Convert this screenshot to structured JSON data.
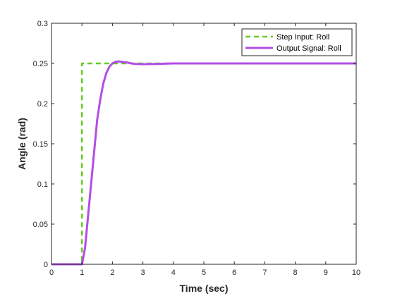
{
  "chart_data": {
    "type": "line",
    "title": "",
    "xlabel": "Time (sec)",
    "ylabel": "Angle (rad)",
    "xlim": [
      0,
      10
    ],
    "ylim": [
      0,
      0.3
    ],
    "xticks": [
      0,
      1,
      2,
      3,
      4,
      5,
      6,
      7,
      8,
      9,
      10
    ],
    "yticks": [
      0,
      0.05,
      0.1,
      0.15,
      0.2,
      0.25,
      0.3
    ],
    "xtick_labels": [
      "0",
      "1",
      "2",
      "3",
      "4",
      "5",
      "6",
      "7",
      "8",
      "9",
      "10"
    ],
    "ytick_labels": [
      "0",
      "0.05",
      "0.1",
      "0.15",
      "0.2",
      "0.25",
      "0.3"
    ],
    "grid": false,
    "legend_position": "top-right",
    "series": [
      {
        "name": "Step Input: Roll",
        "color": "#66cc22",
        "style": "dashed",
        "x": [
          0,
          1,
          1,
          10
        ],
        "y": [
          0,
          0,
          0.25,
          0.25
        ]
      },
      {
        "name": "Output Signal: Roll",
        "color": "#b34de6",
        "style": "solid",
        "x": [
          0,
          1.0,
          1.1,
          1.2,
          1.3,
          1.4,
          1.5,
          1.6,
          1.7,
          1.8,
          1.9,
          2.0,
          2.1,
          2.2,
          2.3,
          2.4,
          2.5,
          2.7,
          3.0,
          3.5,
          4.0,
          5.0,
          6.0,
          8.0,
          10.0
        ],
        "y": [
          0,
          0,
          0.02,
          0.06,
          0.1,
          0.14,
          0.18,
          0.205,
          0.225,
          0.238,
          0.246,
          0.25,
          0.252,
          0.2525,
          0.252,
          0.2515,
          0.251,
          0.2495,
          0.249,
          0.2495,
          0.25,
          0.25,
          0.25,
          0.25,
          0.25
        ]
      }
    ]
  }
}
